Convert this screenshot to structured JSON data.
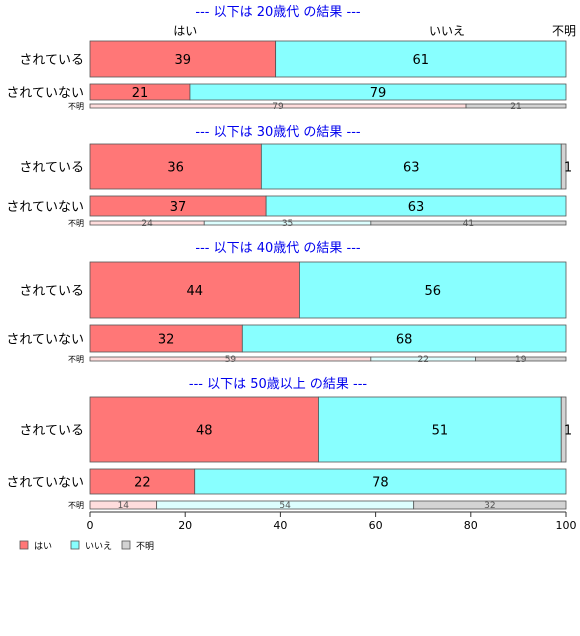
{
  "colors": {
    "hai": "#ff7777",
    "iie": "#88ffff",
    "fumei": "#d3d3d3",
    "fumei_bar_hai": "#ffdddd",
    "fumei_bar_iie": "#ddffff",
    "title": "#0000ee"
  },
  "chart_data": {
    "type": "bar",
    "orientation": "horizontal",
    "stacked": "percent",
    "xlim": [
      0,
      100
    ],
    "x_ticks": [
      "0",
      "20",
      "40",
      "60",
      "80",
      "100"
    ],
    "grid": false,
    "legend": {
      "placement": "bottom-left",
      "entries": [
        "はい",
        "いいえ",
        "不明"
      ]
    },
    "top_column_labels": [
      "はい",
      "いいえ",
      "不明"
    ],
    "categories": [
      "されている",
      "されていない",
      "不明"
    ],
    "panels": [
      {
        "title": "--- 以下は 20歳代 の結果 ---",
        "rows": [
          {
            "label": "されている",
            "values": [
              39,
              61,
              0
            ],
            "labels": [
              "39",
              "61",
              ""
            ]
          },
          {
            "label": "されていない",
            "values": [
              21,
              79,
              0
            ],
            "labels": [
              "21",
              "79",
              ""
            ]
          },
          {
            "label": "不明",
            "values": [
              79,
              0,
              21
            ],
            "labels": [
              "79",
              "",
              "21"
            ]
          }
        ]
      },
      {
        "title": "--- 以下は 30歳代 の結果 ---",
        "rows": [
          {
            "label": "されている",
            "values": [
              36,
              63,
              1
            ],
            "labels": [
              "36",
              "63",
              "1"
            ]
          },
          {
            "label": "されていない",
            "values": [
              37,
              63,
              0
            ],
            "labels": [
              "37",
              "63",
              ""
            ]
          },
          {
            "label": "不明",
            "values": [
              24,
              35,
              41
            ],
            "labels": [
              "24",
              "35",
              "41"
            ]
          }
        ]
      },
      {
        "title": "--- 以下は 40歳代 の結果 ---",
        "rows": [
          {
            "label": "されている",
            "values": [
              44,
              56,
              0
            ],
            "labels": [
              "44",
              "56",
              ""
            ]
          },
          {
            "label": "されていない",
            "values": [
              32,
              68,
              0
            ],
            "labels": [
              "32",
              "68",
              ""
            ]
          },
          {
            "label": "不明",
            "values": [
              59,
              22,
              19
            ],
            "labels": [
              "59",
              "22",
              "19"
            ]
          }
        ]
      },
      {
        "title": "--- 以下は 50歳以上 の結果 ---",
        "rows": [
          {
            "label": "されている",
            "values": [
              48,
              51,
              1
            ],
            "labels": [
              "48",
              "51",
              "1"
            ]
          },
          {
            "label": "されていない",
            "values": [
              22,
              78,
              0
            ],
            "labels": [
              "22",
              "78",
              ""
            ]
          },
          {
            "label": "不明",
            "values": [
              14,
              54,
              32
            ],
            "labels": [
              "14",
              "54",
              "32"
            ]
          }
        ]
      }
    ]
  }
}
